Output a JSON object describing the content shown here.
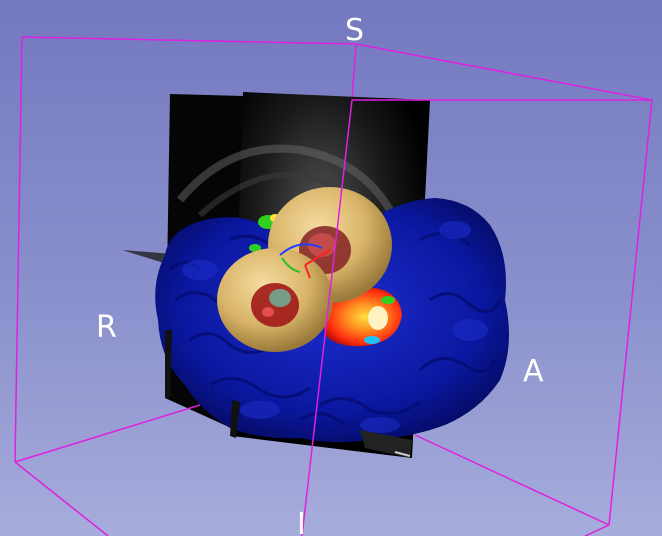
{
  "viewer": {
    "orientation_labels": {
      "superior": "S",
      "right": "R",
      "anterior": "A",
      "inferior": "I"
    }
  },
  "colors": {
    "background_top": "#7479c0",
    "background_bottom": "#a6acdb",
    "bounding_box": "#e020e0",
    "brain_surface": "#0a1aa0",
    "torus": "#d8b468",
    "slice_plane": "#000000",
    "heat_map": [
      "#ff3010",
      "#ff9020",
      "#ffe040",
      "#30d020",
      "#20c0ff"
    ],
    "axis_red": "#ff2020",
    "axis_green": "#20c020",
    "axis_blue": "#2040ff"
  }
}
